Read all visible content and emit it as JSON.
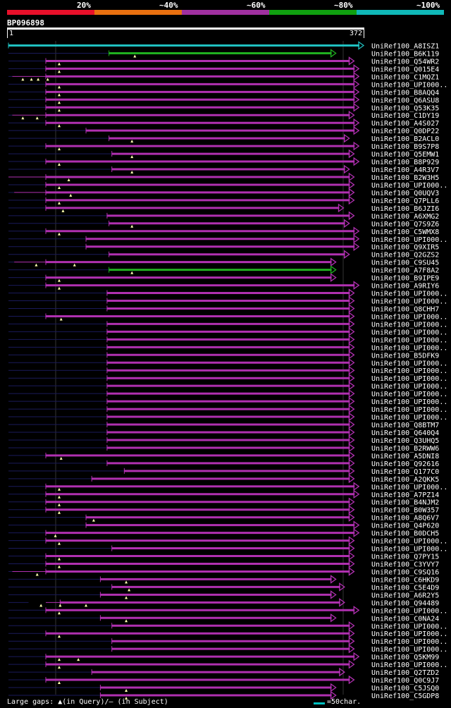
{
  "legend": {
    "labels": [
      "20%",
      "~40%",
      "~60%",
      "~80%",
      "~100%"
    ],
    "colors": [
      "#e8102a",
      "#e87010",
      "#a030a0",
      "#10a010",
      "#10b8b8"
    ]
  },
  "query": {
    "id": "BP096898",
    "start": "1",
    "end": "372",
    "length": 372
  },
  "hits": [
    {
      "name": "UniRef100_A8ISZ1",
      "start": 1,
      "end": 372,
      "color": "cyan",
      "gaps": []
    },
    {
      "name": "UniRef100_B6K119",
      "start": 106,
      "end": 343,
      "color": "green",
      "gaps": [
        133
      ]
    },
    {
      "name": "UniRef100_Q54WR2",
      "start": 40,
      "end": 362,
      "color": "purple",
      "gaps": [
        54
      ]
    },
    {
      "name": "UniRef100_Q015E4",
      "start": 40,
      "end": 367,
      "color": "purple",
      "gaps": [
        54
      ]
    },
    {
      "name": "UniRef100_C1MQZ1",
      "start": 5,
      "end": 367,
      "color": "purple",
      "gaps": [
        16,
        25,
        32,
        42
      ],
      "subject_gaps": [
        [
          5,
          40
        ]
      ]
    },
    {
      "name": "UniRef100_UPI000..",
      "start": 40,
      "end": 367,
      "color": "purple",
      "gaps": [
        54
      ]
    },
    {
      "name": "UniRef100_B8AQQ4",
      "start": 40,
      "end": 367,
      "color": "purple",
      "gaps": [
        54
      ]
    },
    {
      "name": "UniRef100_Q6ASU8",
      "start": 40,
      "end": 367,
      "color": "purple",
      "gaps": [
        54
      ]
    },
    {
      "name": "UniRef100_Q53K35",
      "start": 40,
      "end": 367,
      "color": "purple",
      "gaps": [
        54
      ]
    },
    {
      "name": "UniRef100_C1DY19",
      "start": 5,
      "end": 362,
      "color": "purple",
      "gaps": [
        16,
        31
      ],
      "subject_gaps": [
        [
          5,
          40
        ]
      ]
    },
    {
      "name": "UniRef100_A4S027",
      "start": 40,
      "end": 367,
      "color": "purple",
      "gaps": [
        54
      ]
    },
    {
      "name": "UniRef100_Q0DP22",
      "start": 82,
      "end": 367,
      "color": "purple",
      "gaps": []
    },
    {
      "name": "UniRef100_B2ACL0",
      "start": 106,
      "end": 357,
      "color": "purple",
      "gaps": [
        130
      ]
    },
    {
      "name": "UniRef100_B9S7P8",
      "start": 40,
      "end": 367,
      "color": "purple",
      "gaps": [
        54
      ]
    },
    {
      "name": "UniRef100_Q5EMW1",
      "start": 109,
      "end": 362,
      "color": "purple",
      "gaps": [
        130
      ]
    },
    {
      "name": "UniRef100_B8P929",
      "start": 40,
      "end": 367,
      "color": "purple",
      "gaps": [
        54
      ]
    },
    {
      "name": "UniRef100_A4R3V7",
      "start": 109,
      "end": 357,
      "color": "purple",
      "gaps": [
        130
      ]
    },
    {
      "name": "UniRef100_B2W3H5",
      "start": 1,
      "end": 362,
      "color": "purple",
      "gaps": [
        64
      ],
      "subject_gaps": [
        [
          1,
          40
        ]
      ]
    },
    {
      "name": "UniRef100_UPI000..",
      "start": 40,
      "end": 362,
      "color": "purple",
      "gaps": [
        54
      ]
    },
    {
      "name": "UniRef100_Q0UQV3",
      "start": 7,
      "end": 362,
      "color": "purple",
      "gaps": [
        66
      ],
      "subject_gaps": [
        [
          7,
          40
        ]
      ]
    },
    {
      "name": "UniRef100_Q7PLL6",
      "start": 40,
      "end": 362,
      "color": "purple",
      "gaps": [
        54
      ]
    },
    {
      "name": "UniRef100_B6JZI6",
      "start": 40,
      "end": 351,
      "color": "purple",
      "gaps": [
        58
      ]
    },
    {
      "name": "UniRef100_A6XMG2",
      "start": 104,
      "end": 362,
      "color": "purple",
      "gaps": []
    },
    {
      "name": "UniRef100_Q7S9Z6",
      "start": 106,
      "end": 357,
      "color": "purple",
      "gaps": [
        130
      ]
    },
    {
      "name": "UniRef100_C5WMX8",
      "start": 40,
      "end": 367,
      "color": "purple",
      "gaps": [
        54
      ]
    },
    {
      "name": "UniRef100_UPI000..",
      "start": 82,
      "end": 367,
      "color": "purple",
      "gaps": []
    },
    {
      "name": "UniRef100_Q9XIR5",
      "start": 82,
      "end": 367,
      "color": "purple",
      "gaps": []
    },
    {
      "name": "UniRef100_Q2GZS2",
      "start": 106,
      "end": 357,
      "color": "purple",
      "gaps": []
    },
    {
      "name": "UniRef100_C9SU45",
      "start": 7,
      "end": 343,
      "color": "purple",
      "gaps": [
        30,
        70
      ],
      "subject_gaps": [
        [
          7,
          40
        ]
      ]
    },
    {
      "name": "UniRef100_A7F8A2",
      "start": 106,
      "end": 343,
      "color": "green",
      "gaps": [
        130
      ]
    },
    {
      "name": "UniRef100_B9IPE9",
      "start": 40,
      "end": 343,
      "color": "purple",
      "gaps": [
        54
      ]
    },
    {
      "name": "UniRef100_A9RIY6",
      "start": 40,
      "end": 367,
      "color": "purple",
      "gaps": [
        54
      ]
    },
    {
      "name": "UniRef100_UPI000..",
      "start": 104,
      "end": 362,
      "color": "purple",
      "gaps": []
    },
    {
      "name": "UniRef100_UPI000..",
      "start": 104,
      "end": 362,
      "color": "purple",
      "gaps": []
    },
    {
      "name": "UniRef100_Q8CHH7",
      "start": 104,
      "end": 362,
      "color": "purple",
      "gaps": []
    },
    {
      "name": "UniRef100_UPI000..",
      "start": 40,
      "end": 362,
      "color": "purple",
      "gaps": [
        56
      ]
    },
    {
      "name": "UniRef100_UPI000..",
      "start": 104,
      "end": 362,
      "color": "purple",
      "gaps": []
    },
    {
      "name": "UniRef100_UPI000..",
      "start": 104,
      "end": 362,
      "color": "purple",
      "gaps": []
    },
    {
      "name": "UniRef100_UPI000..",
      "start": 104,
      "end": 362,
      "color": "purple",
      "gaps": []
    },
    {
      "name": "UniRef100_UPI000..",
      "start": 104,
      "end": 362,
      "color": "purple",
      "gaps": []
    },
    {
      "name": "UniRef100_B5DFK9",
      "start": 104,
      "end": 362,
      "color": "purple",
      "gaps": []
    },
    {
      "name": "UniRef100_UPI000..",
      "start": 104,
      "end": 362,
      "color": "purple",
      "gaps": []
    },
    {
      "name": "UniRef100_UPI000..",
      "start": 104,
      "end": 362,
      "color": "purple",
      "gaps": []
    },
    {
      "name": "UniRef100_UPI000..",
      "start": 104,
      "end": 362,
      "color": "purple",
      "gaps": []
    },
    {
      "name": "UniRef100_UPI000..",
      "start": 104,
      "end": 362,
      "color": "purple",
      "gaps": []
    },
    {
      "name": "UniRef100_UPI000..",
      "start": 104,
      "end": 362,
      "color": "purple",
      "gaps": []
    },
    {
      "name": "UniRef100_UPI000..",
      "start": 104,
      "end": 362,
      "color": "purple",
      "gaps": []
    },
    {
      "name": "UniRef100_UPI000..",
      "start": 104,
      "end": 362,
      "color": "purple",
      "gaps": []
    },
    {
      "name": "UniRef100_UPI000..",
      "start": 104,
      "end": 362,
      "color": "purple",
      "gaps": []
    },
    {
      "name": "UniRef100_Q8BTM7",
      "start": 104,
      "end": 362,
      "color": "purple",
      "gaps": []
    },
    {
      "name": "UniRef100_Q640Q4",
      "start": 104,
      "end": 362,
      "color": "purple",
      "gaps": []
    },
    {
      "name": "UniRef100_Q3UHQ5",
      "start": 104,
      "end": 362,
      "color": "purple",
      "gaps": []
    },
    {
      "name": "UniRef100_B2RWW6",
      "start": 104,
      "end": 362,
      "color": "purple",
      "gaps": []
    },
    {
      "name": "UniRef100_A5DNI8",
      "start": 40,
      "end": 362,
      "color": "purple",
      "gaps": [
        56
      ]
    },
    {
      "name": "UniRef100_Q92616",
      "start": 104,
      "end": 362,
      "color": "purple",
      "gaps": []
    },
    {
      "name": "UniRef100_Q177C0",
      "start": 122,
      "end": 362,
      "color": "purple",
      "gaps": []
    },
    {
      "name": "UniRef100_A2QKK5",
      "start": 88,
      "end": 362,
      "color": "purple",
      "gaps": []
    },
    {
      "name": "UniRef100_UPI000..",
      "start": 40,
      "end": 367,
      "color": "purple",
      "gaps": [
        54
      ]
    },
    {
      "name": "UniRef100_A7PZ14",
      "start": 40,
      "end": 367,
      "color": "purple",
      "gaps": [
        54
      ]
    },
    {
      "name": "UniRef100_B4NJM2",
      "start": 40,
      "end": 362,
      "color": "purple",
      "gaps": [
        54
      ]
    },
    {
      "name": "UniRef100_B0W357",
      "start": 40,
      "end": 362,
      "color": "purple",
      "gaps": [
        54
      ]
    },
    {
      "name": "UniRef100_A8Q6V7",
      "start": 82,
      "end": 362,
      "color": "purple",
      "gaps": [
        90
      ]
    },
    {
      "name": "UniRef100_Q4P620",
      "start": 82,
      "end": 367,
      "color": "purple",
      "gaps": []
    },
    {
      "name": "UniRef100_B0DCH5",
      "start": 40,
      "end": 367,
      "color": "purple",
      "gaps": [
        50
      ]
    },
    {
      "name": "UniRef100_UPI000..",
      "start": 40,
      "end": 362,
      "color": "purple",
      "gaps": [
        54
      ]
    },
    {
      "name": "UniRef100_UPI000..",
      "start": 109,
      "end": 362,
      "color": "purple",
      "gaps": []
    },
    {
      "name": "UniRef100_Q7PY15",
      "start": 40,
      "end": 362,
      "color": "purple",
      "gaps": [
        54
      ]
    },
    {
      "name": "UniRef100_C3YVY7",
      "start": 40,
      "end": 362,
      "color": "purple",
      "gaps": [
        54
      ]
    },
    {
      "name": "UniRef100_C9SQ16",
      "start": 5,
      "end": 362,
      "color": "purple",
      "gaps": [
        31
      ],
      "subject_gaps": [
        [
          5,
          40
        ]
      ]
    },
    {
      "name": "UniRef100_C6HKD9",
      "start": 97,
      "end": 343,
      "color": "purple",
      "gaps": [
        124
      ]
    },
    {
      "name": "UniRef100_C5E4D9",
      "start": 109,
      "end": 352,
      "color": "purple",
      "gaps": [
        127
      ]
    },
    {
      "name": "UniRef100_A6R2Y5",
      "start": 97,
      "end": 343,
      "color": "purple",
      "gaps": [
        124
      ]
    },
    {
      "name": "UniRef100_Q94489",
      "start": 22,
      "end": 352,
      "color": "purple",
      "gaps": [
        35,
        55,
        82
      ],
      "subject_gaps": [
        [
          40,
          55
        ]
      ]
    },
    {
      "name": "UniRef100_UPI000..",
      "start": 40,
      "end": 367,
      "color": "purple",
      "gaps": [
        54
      ]
    },
    {
      "name": "UniRef100_C0NA24",
      "start": 97,
      "end": 343,
      "color": "purple",
      "gaps": [
        124
      ]
    },
    {
      "name": "UniRef100_UPI000..",
      "start": 109,
      "end": 362,
      "color": "purple",
      "gaps": []
    },
    {
      "name": "UniRef100_UPI000..",
      "start": 40,
      "end": 362,
      "color": "purple",
      "gaps": [
        54
      ]
    },
    {
      "name": "UniRef100_UPI000..",
      "start": 109,
      "end": 362,
      "color": "purple",
      "gaps": []
    },
    {
      "name": "UniRef100_UPI000..",
      "start": 109,
      "end": 362,
      "color": "purple",
      "gaps": []
    },
    {
      "name": "UniRef100_Q5KM99",
      "start": 40,
      "end": 367,
      "color": "purple",
      "gaps": [
        54,
        74
      ]
    },
    {
      "name": "UniRef100_UPI000..",
      "start": 40,
      "end": 362,
      "color": "purple",
      "gaps": [
        54
      ]
    },
    {
      "name": "UniRef100_Q2TZD2",
      "start": 88,
      "end": 352,
      "color": "purple",
      "gaps": []
    },
    {
      "name": "UniRef100_Q0C9J7",
      "start": 40,
      "end": 362,
      "color": "purple",
      "gaps": [
        54
      ]
    },
    {
      "name": "UniRef100_C5JSQ0",
      "start": 97,
      "end": 343,
      "color": "purple",
      "gaps": [
        124
      ]
    },
    {
      "name": "UniRef100_C5GDP8",
      "start": 97,
      "end": 343,
      "color": "purple",
      "gaps": [
        124
      ]
    }
  ],
  "footer": {
    "gaps_label": "Large gaps: ▲(in Query)/— (in Subject)",
    "scale_label": "=50char."
  }
}
